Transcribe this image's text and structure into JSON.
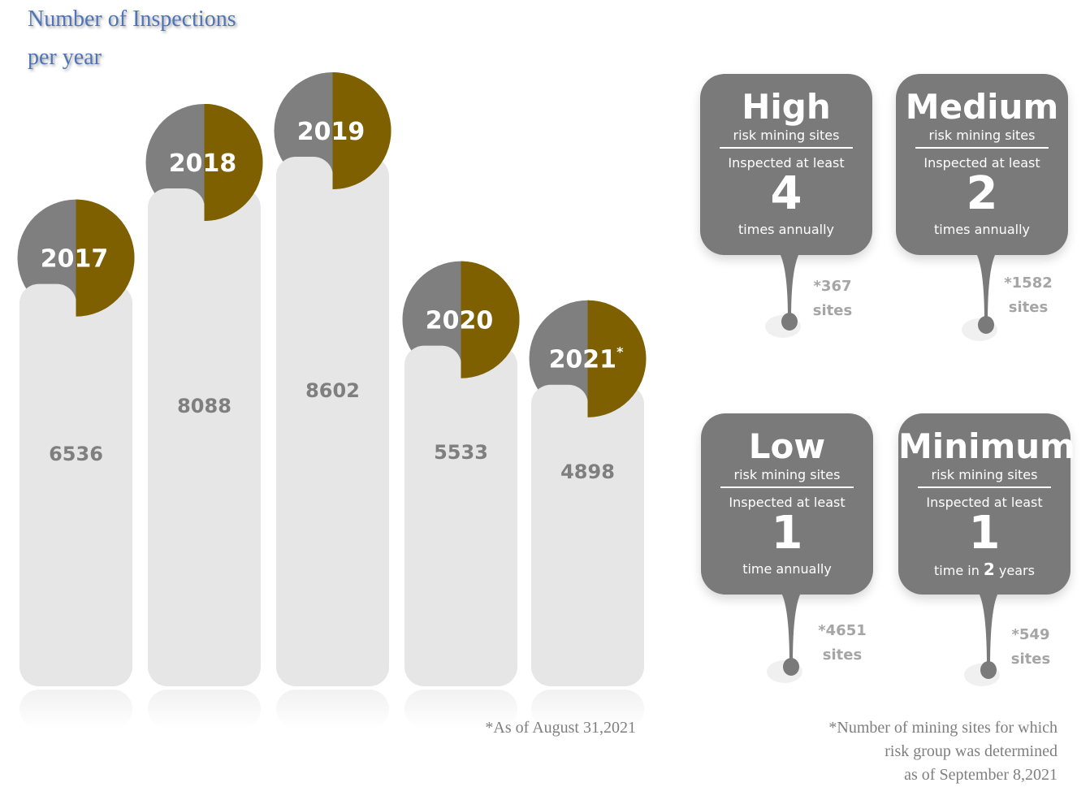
{
  "title_line1": "Number of Inspections",
  "title_line2": "per year",
  "chart_data": {
    "type": "bar",
    "title": "Number of Inspections per year",
    "categories": [
      "2017",
      "2018",
      "2019",
      "2020",
      "2021"
    ],
    "category_marks": [
      "",
      "",
      "",
      "",
      "*"
    ],
    "values": [
      6536,
      8088,
      8602,
      5533,
      4898
    ],
    "colors": {
      "bar": "#e6e6e6",
      "badge_left": "#7f7f7f",
      "badge_right": "#7f6000",
      "value_text": "#7f7f7f"
    }
  },
  "footnote_chart": "*As of August 31,2021",
  "risk_cards": [
    {
      "level": "High",
      "sub": "risk mining sites",
      "inspected": "Inspected at least",
      "number": "4",
      "freq_pre": "times annually",
      "freq_num": "",
      "freq_post": "",
      "count": "*367",
      "count_unit": "sites"
    },
    {
      "level": "Medium",
      "sub": "risk mining sites",
      "inspected": "Inspected at least",
      "number": "2",
      "freq_pre": "times annually",
      "freq_num": "",
      "freq_post": "",
      "count": "*1582",
      "count_unit": "sites"
    },
    {
      "level": "Low",
      "sub": "risk mining sites",
      "inspected": "Inspected at least",
      "number": "1",
      "freq_pre": "time annually",
      "freq_num": "",
      "freq_post": "",
      "count": "*4651",
      "count_unit": "sites"
    },
    {
      "level": "Minimum",
      "sub": "risk mining sites",
      "inspected": "Inspected at least",
      "number": "1",
      "freq_pre": "time in ",
      "freq_num": "2",
      "freq_post": " years",
      "count": "*549",
      "count_unit": "sites"
    }
  ],
  "footnote_sites_line1": "*Number of mining sites for which",
  "footnote_sites_line2": "risk group was determined",
  "footnote_sites_line3": "as of September 8,2021",
  "card_color": "#7a7a7a",
  "title_color": "#4f74b8"
}
